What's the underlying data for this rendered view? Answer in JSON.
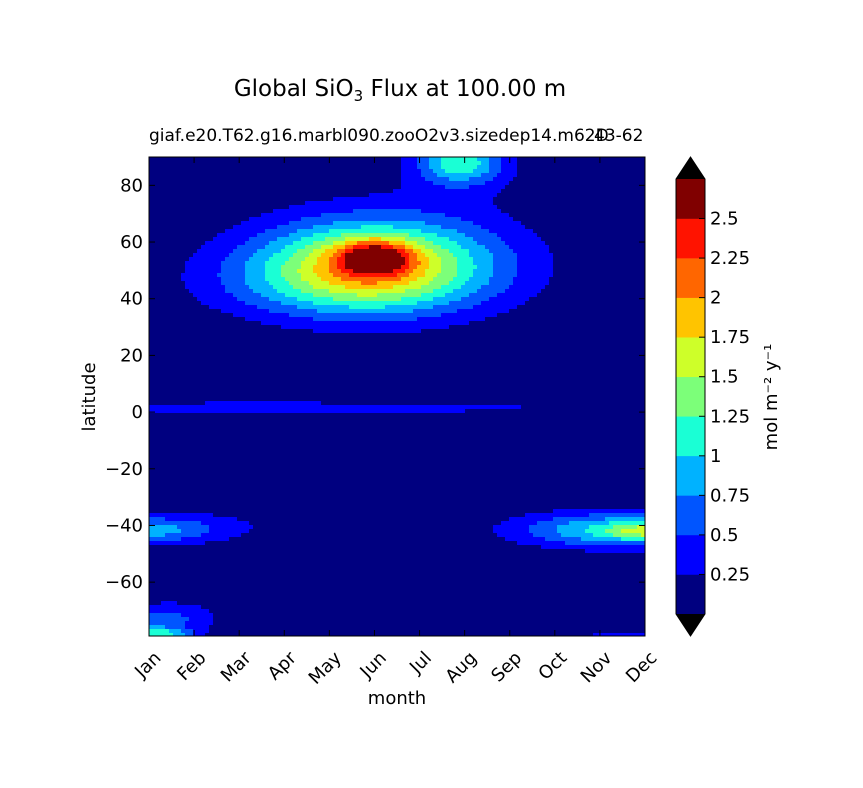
{
  "chart_data": {
    "type": "heatmap",
    "title": {
      "prefix": "Global SiO",
      "subscript": "3",
      "suffix": " Flux at 100.00 m"
    },
    "subtitle_left": "giaf.e20.T62.g16.marbl090.zooO2v3.sizedep14.m62D",
    "subtitle_right": "43-62",
    "xlabel": "month",
    "ylabel": "latitude",
    "x_ticks": [
      "Jan",
      "Feb",
      "Mar",
      "Apr",
      "May",
      "Jun",
      "Jul",
      "Aug",
      "Sep",
      "Oct",
      "Nov",
      "Dec"
    ],
    "ylim": [
      -79,
      90
    ],
    "y_ticks": [
      "80",
      "60",
      "40",
      "20",
      "0",
      "−20",
      "−40",
      "−60"
    ],
    "y_tick_values": [
      80,
      60,
      40,
      20,
      0,
      -20,
      -40,
      -60
    ],
    "colorbar": {
      "label": "mol m⁻² y⁻¹",
      "levels": [
        0,
        0.25,
        0.5,
        0.75,
        1,
        1.25,
        1.5,
        1.75,
        2,
        2.25,
        2.5,
        2.75
      ],
      "tick_labels": [
        "0.25",
        "0.5",
        "0.75",
        "1",
        "1.25",
        "1.5",
        "1.75",
        "2",
        "2.25",
        "2.5"
      ],
      "tick_values": [
        0.25,
        0.5,
        0.75,
        1,
        1.25,
        1.5,
        1.75,
        2,
        2.25,
        2.5
      ],
      "colors": [
        "#000080",
        "#0000ff",
        "#0055ff",
        "#00b2ff",
        "#1affd5",
        "#7cff79",
        "#ceff29",
        "#ffc400",
        "#ff6600",
        "#ff1300",
        "#800000"
      ],
      "extend_low_color": "#000000",
      "extend_high_color": "#000000"
    },
    "features": [
      {
        "month": 5.0,
        "lat": 52,
        "sx": 1.75,
        "sy": 11,
        "amp": 1.5
      },
      {
        "month": 5.0,
        "lat": 54.5,
        "sx": 0.55,
        "sy": 4,
        "amp": 1.3
      },
      {
        "month": 4.0,
        "lat": 45,
        "sx": 2.1,
        "sy": 9,
        "amp": 0.45
      },
      {
        "month": 5.5,
        "lat": 55,
        "sx": 2.6,
        "sy": 15,
        "amp": 0.3
      },
      {
        "month": 6.9,
        "lat": 88,
        "sx": 0.6,
        "sy": 5,
        "amp": 0.85
      },
      {
        "month": 6.9,
        "lat": 88,
        "sx": 1.0,
        "sy": 9,
        "amp": 0.35
      },
      {
        "month": 2.5,
        "lat": 1.5,
        "sx": 6,
        "sy": 1.8,
        "amp": 0.4
      },
      {
        "month": 8.6,
        "lat": 11,
        "sx": 0.45,
        "sy": 0.8,
        "amp": 0.3
      },
      {
        "month": 10.7,
        "lat": -42,
        "sx": 1.7,
        "sy": 4,
        "amp": 0.9
      },
      {
        "month": 11.0,
        "lat": -42,
        "sx": 0.5,
        "sy": 1.8,
        "amp": 0.6
      },
      {
        "month": 10.2,
        "lat": -40,
        "sx": 1.6,
        "sy": 6,
        "amp": 0.28
      },
      {
        "month": 0.0,
        "lat": -42,
        "sx": 1.0,
        "sy": 3.2,
        "amp": 0.6
      },
      {
        "month": 0.5,
        "lat": -40,
        "sx": 2.2,
        "sy": 5,
        "amp": 0.3
      },
      {
        "month": 0.5,
        "lat": -72,
        "sx": 0.9,
        "sy": 5,
        "amp": 0.35
      },
      {
        "month": 0.0,
        "lat": -74,
        "sx": 0.7,
        "sy": 3,
        "amp": 0.4
      },
      {
        "month": 0.15,
        "lat": -78.5,
        "sx": 0.55,
        "sy": 1.5,
        "amp": 1.0
      },
      {
        "month": 10.6,
        "lat": -78.5,
        "sx": 0.9,
        "sy": 1.0,
        "amp": 0.35
      }
    ]
  }
}
